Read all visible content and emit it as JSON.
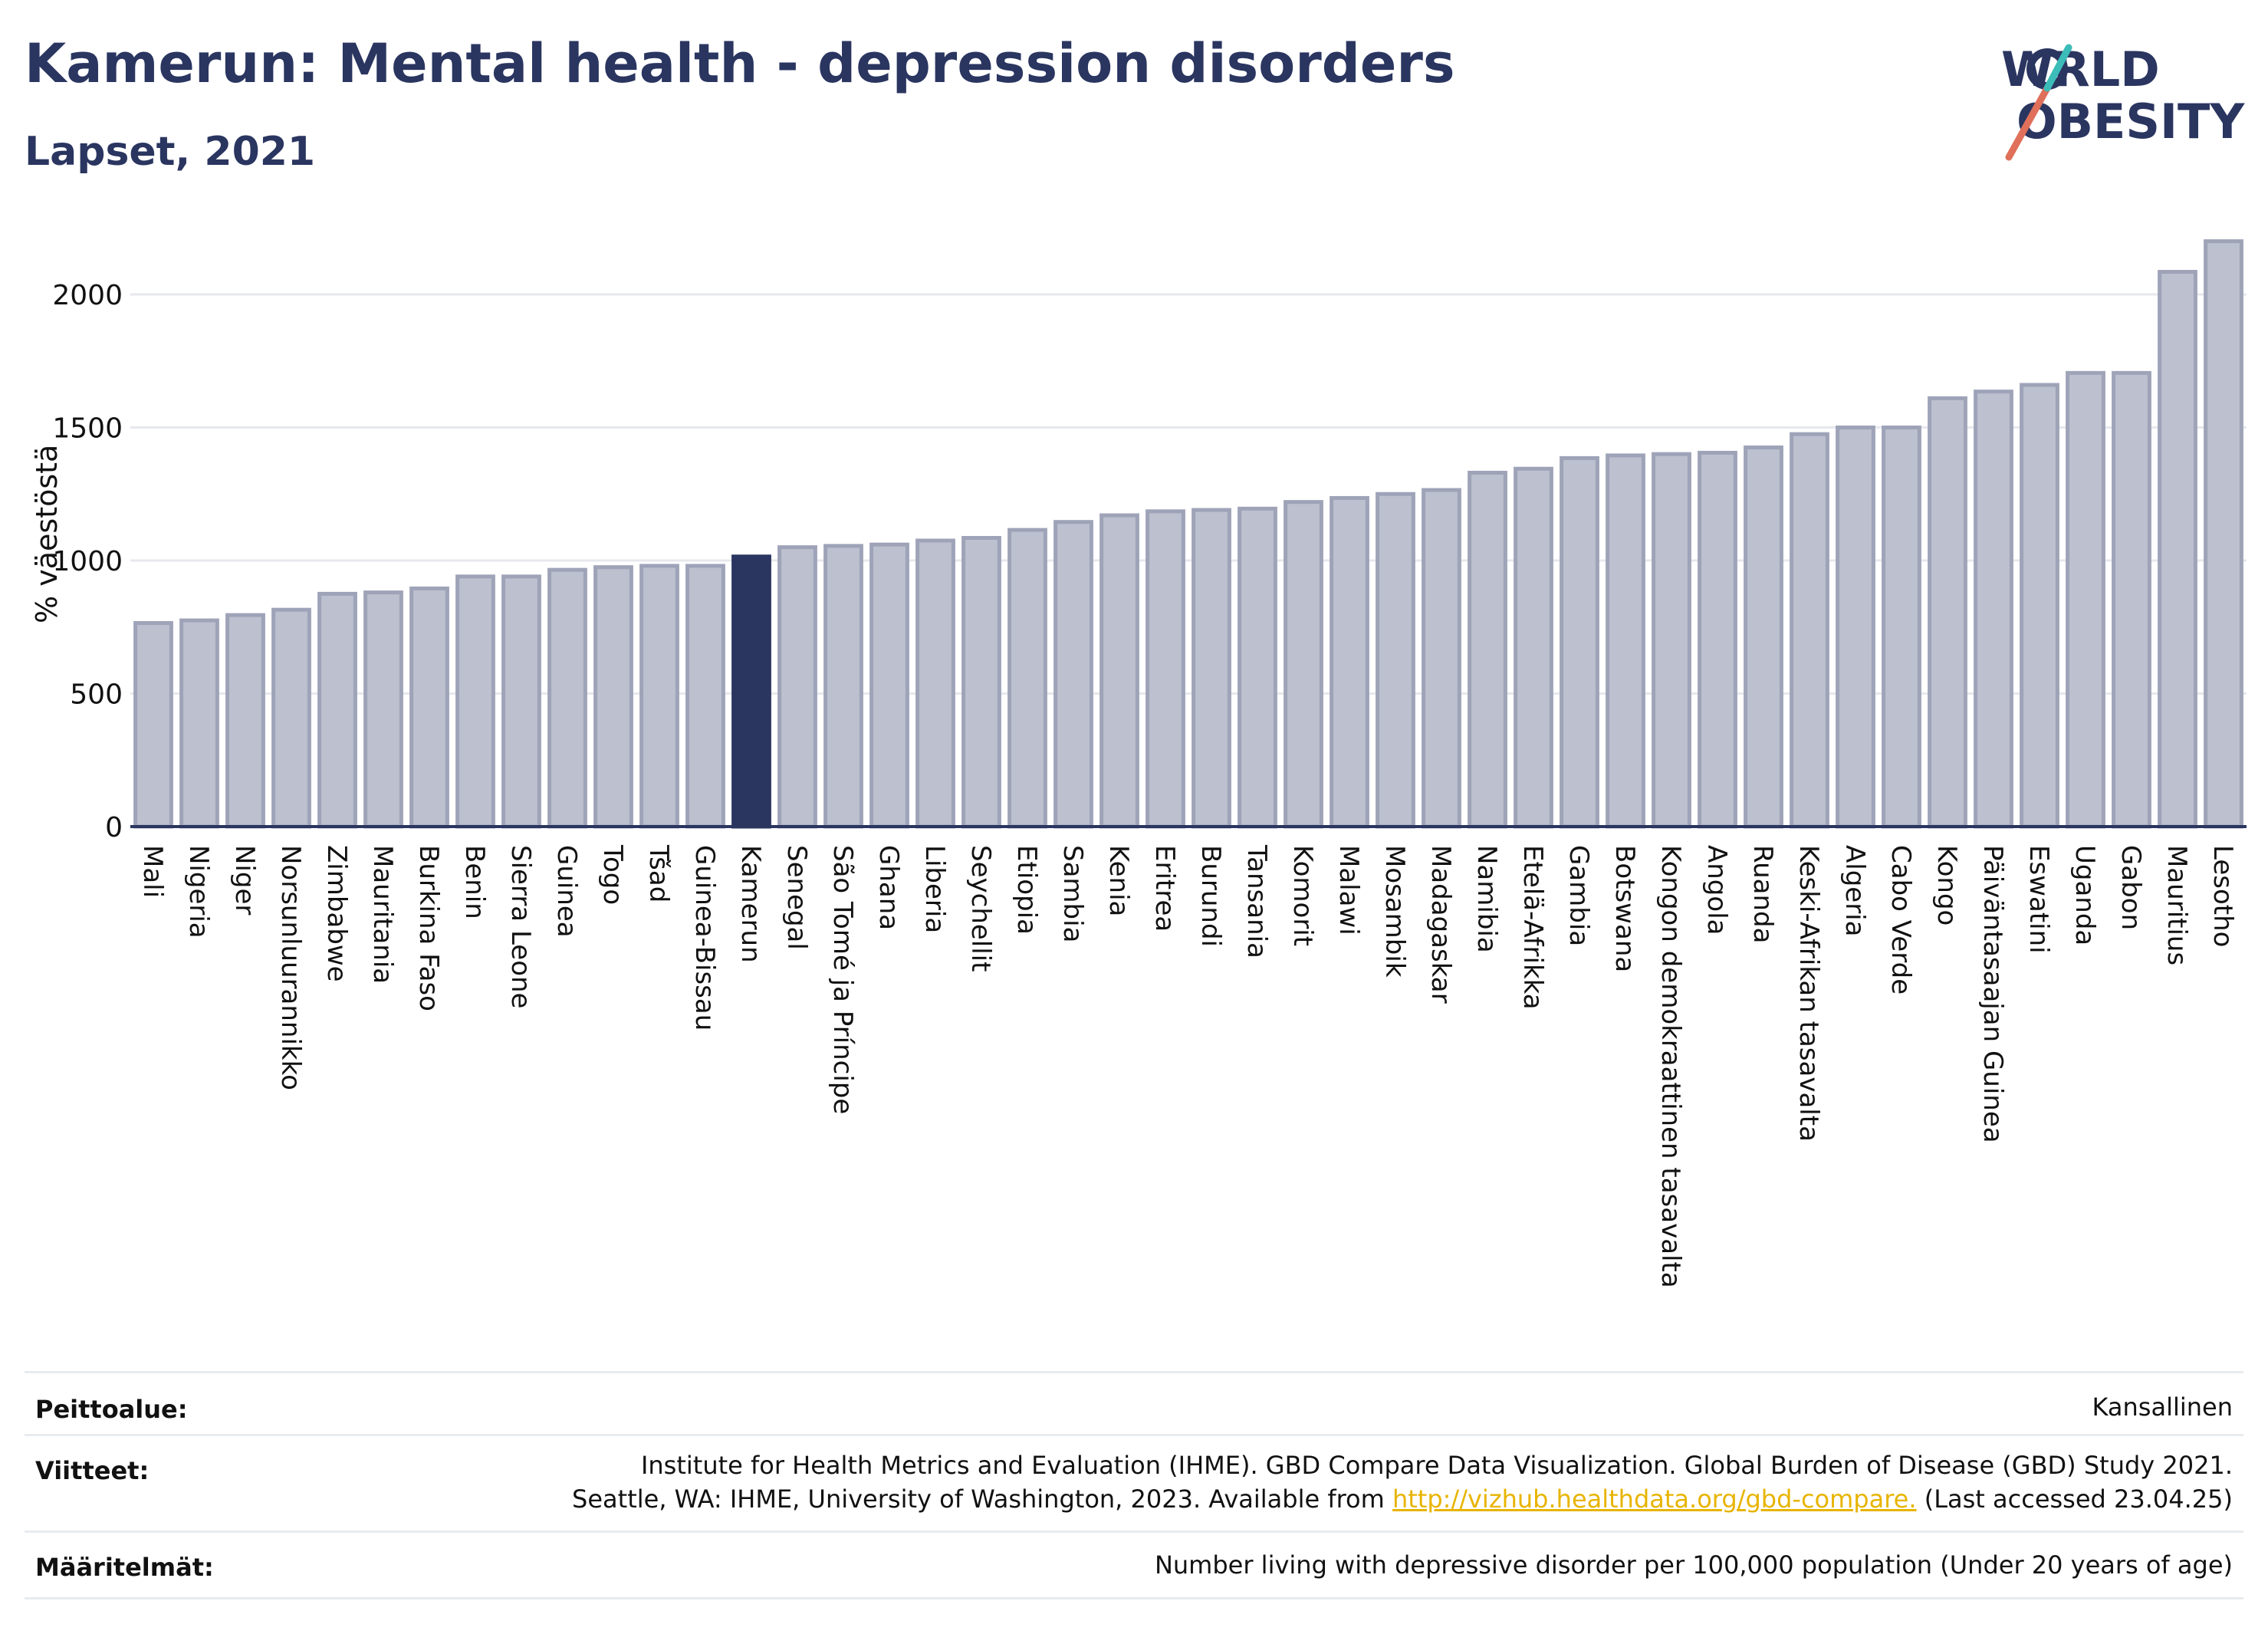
{
  "header": {
    "title": "Kamerun: Mental health - depression disorders",
    "subtitle": "Lapset, 2021"
  },
  "logo": {
    "line1": "WORLD",
    "line2": "OBESITY"
  },
  "chart_data": {
    "type": "bar",
    "title": "Kamerun: Mental health - depression disorders",
    "subtitle": "Lapset, 2021",
    "ylabel": "% väestöstä",
    "xlabel": "",
    "ylim": [
      0,
      2250
    ],
    "yticks": [
      0,
      500,
      1000,
      1500,
      2000
    ],
    "grid": true,
    "highlight": "Kamerun",
    "colors": {
      "bar": "#bcc0cf",
      "bar_border": "#9ea3b8",
      "highlight": "#2a3560",
      "axis": "#2a3560",
      "grid": "#e6e8ee"
    },
    "categories": [
      "Mali",
      "Nigeria",
      "Niger",
      "Norsunluurannikko",
      "Zimbabwe",
      "Mauritania",
      "Burkina Faso",
      "Benin",
      "Sierra Leone",
      "Guinea",
      "Togo",
      "Tšad",
      "Guinea-Bissau",
      "Kamerun",
      "Senegal",
      "São Tomé ja Príncipe",
      "Ghana",
      "Liberia",
      "Seychellit",
      "Etiopia",
      "Sambia",
      "Kenia",
      "Eritrea",
      "Burundi",
      "Tansania",
      "Komorit",
      "Malawi",
      "Mosambik",
      "Madagaskar",
      "Namibia",
      "Etelä-Afrikka",
      "Gambia",
      "Botswana",
      "Kongon demokraattinen tasavalta",
      "Angola",
      "Ruanda",
      "Keski-Afrikan tasavalta",
      "Algeria",
      "Cabo Verde",
      "Kongo",
      "Päiväntasaajan Guinea",
      "Eswatini",
      "Uganda",
      "Gabon",
      "Mauritius",
      "Lesotho"
    ],
    "values": [
      765,
      775,
      795,
      815,
      875,
      880,
      895,
      940,
      940,
      965,
      975,
      980,
      980,
      1015,
      1050,
      1055,
      1060,
      1075,
      1085,
      1115,
      1145,
      1170,
      1185,
      1190,
      1195,
      1220,
      1235,
      1250,
      1265,
      1330,
      1345,
      1385,
      1395,
      1400,
      1405,
      1425,
      1475,
      1500,
      1500,
      1610,
      1635,
      1660,
      1705,
      1705,
      2085,
      2200
    ]
  },
  "footer": {
    "coverage_label": "Peittoalue:",
    "coverage_value": "Kansallinen",
    "references_label": "Viitteet:",
    "references_line1": "Institute for Health Metrics and Evaluation (IHME). GBD Compare Data Visualization. Global Burden of Disease (GBD) Study 2021.",
    "references_line2_pre": "Seattle, WA: IHME, University of Washington, 2023. Available from ",
    "references_link": "http://vizhub.healthdata.org/gbd-compare.",
    "references_line2_post": " (Last accessed 23.04.25)",
    "definitions_label": "Määritelmät:",
    "definitions_value": "Number living with depressive disorder per 100,000 population (Under 20 years of age)"
  }
}
